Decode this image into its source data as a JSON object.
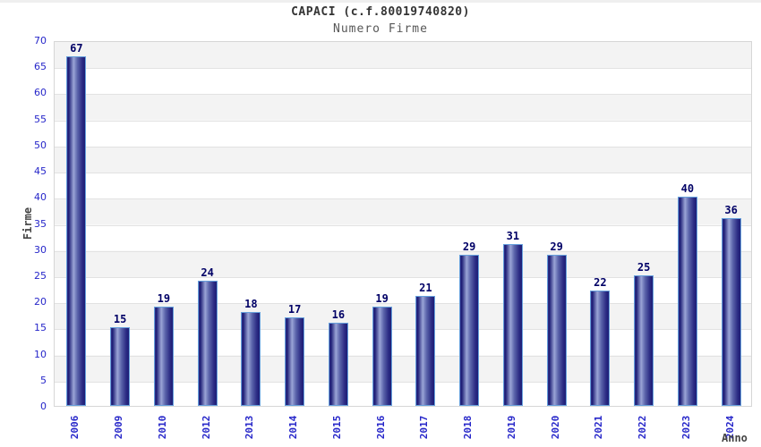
{
  "header": {
    "title": "CAPACI (c.f.80019740820)",
    "subtitle": "Numero Firme"
  },
  "axes": {
    "y_label": "Firme",
    "x_label": "Anno"
  },
  "colors": {
    "tick_label_blue": "#2626c9",
    "value_label_navy": "#000066",
    "bar_border": "#66a0dc",
    "bar_dark": "#1c1c74",
    "bar_highlight": "#9aa4d6",
    "band_gray": "#f3f3f3",
    "band_white": "#ffffff",
    "gridline": "#e2e2e2",
    "plot_border": "#d6d6d6",
    "title_text": "#333333",
    "subtitle_text": "#575757",
    "axis_title_text": "#444444"
  },
  "chart_data": {
    "type": "bar",
    "title": "CAPACI (c.f.80019740820)",
    "subtitle": "Numero Firme",
    "xlabel": "Anno",
    "ylabel": "Firme",
    "categories": [
      "2006",
      "2009",
      "2010",
      "2012",
      "2013",
      "2014",
      "2015",
      "2016",
      "2017",
      "2018",
      "2019",
      "2020",
      "2021",
      "2022",
      "2023",
      "2024"
    ],
    "values": [
      67,
      15,
      19,
      24,
      18,
      17,
      16,
      19,
      21,
      29,
      31,
      29,
      22,
      25,
      40,
      36
    ],
    "ylim": [
      0,
      70
    ],
    "ytick_step": 5,
    "grid": true,
    "bands": "alternating gray/white every 5 units",
    "legend": "none",
    "bar_value_labels": true,
    "x_tick_rotation_deg": -90
  }
}
